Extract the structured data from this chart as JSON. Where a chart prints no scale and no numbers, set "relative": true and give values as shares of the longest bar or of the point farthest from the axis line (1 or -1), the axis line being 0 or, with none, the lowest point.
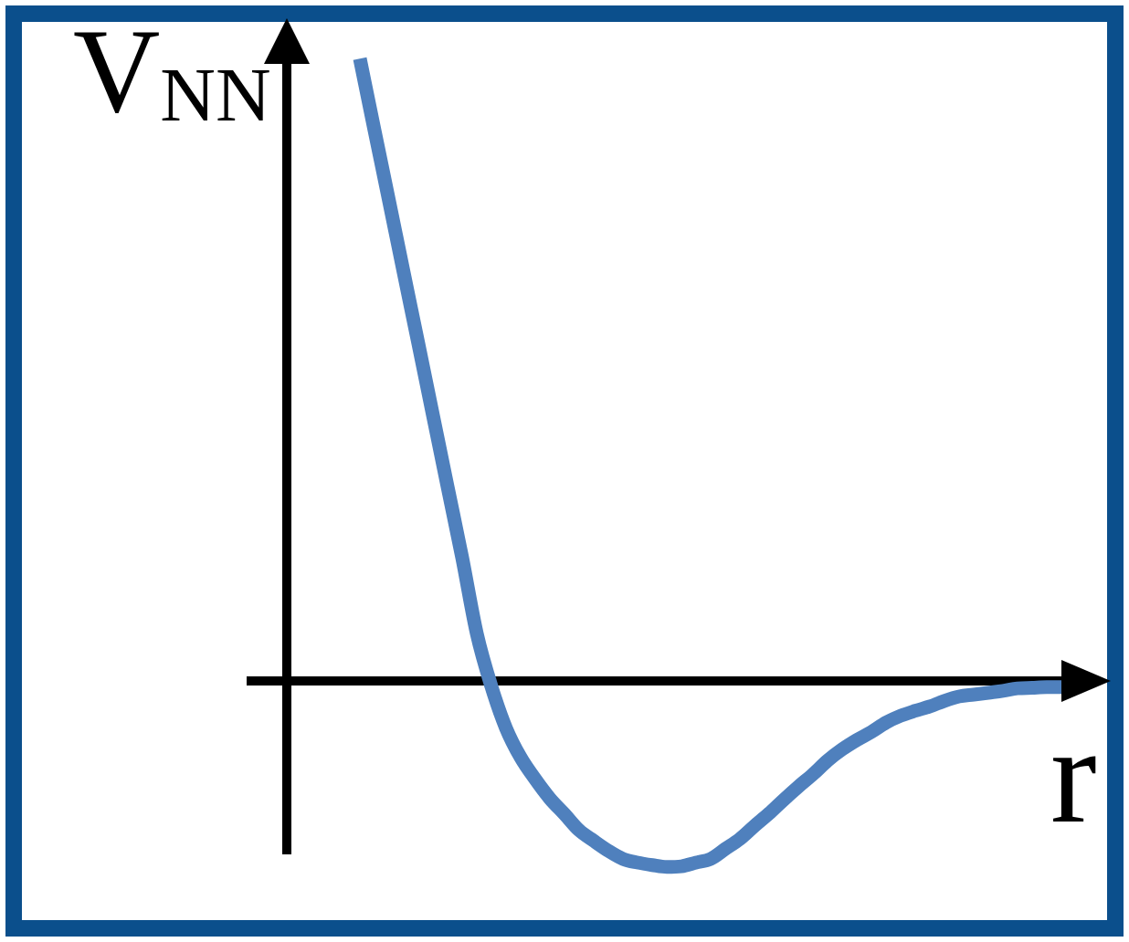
{
  "chart_data": {
    "type": "line",
    "xlabel": "r",
    "ylabel": "V$_{NN}$",
    "relative": true,
    "color": "#4f80bd",
    "categories": [
      null,
      null,
      null,
      null,
      null,
      null,
      null,
      null,
      null,
      null,
      null,
      null,
      null,
      null,
      null,
      null,
      null,
      null,
      null,
      null,
      null,
      null,
      null,
      null,
      null,
      null,
      null,
      null,
      null,
      null,
      null,
      null,
      null,
      null,
      null,
      null,
      null,
      null,
      null,
      null,
      null,
      null,
      null,
      null,
      null,
      null,
      null,
      null,
      null,
      null,
      null,
      null,
      null,
      null,
      null,
      null,
      null
    ],
    "values": [
      null,
      null,
      null,
      null,
      null,
      1.0,
      0.885,
      0.771,
      0.656,
      0.542,
      0.427,
      0.312,
      0.198,
      0.076,
      -0.009,
      -0.076,
      -0.123,
      -0.158,
      -0.189,
      -0.214,
      -0.24,
      -0.257,
      -0.273,
      -0.286,
      -0.292,
      -0.296,
      -0.299,
      -0.298,
      -0.292,
      -0.286,
      -0.27,
      -0.254,
      -0.233,
      -0.213,
      -0.191,
      -0.17,
      -0.15,
      -0.128,
      -0.11,
      -0.095,
      -0.082,
      -0.067,
      -0.056,
      -0.048,
      -0.041,
      -0.032,
      -0.025,
      -0.022,
      -0.019,
      -0.016,
      -0.012,
      -0.011,
      -0.01,
      -0.01,
      null,
      null,
      null
    ]
  }
}
